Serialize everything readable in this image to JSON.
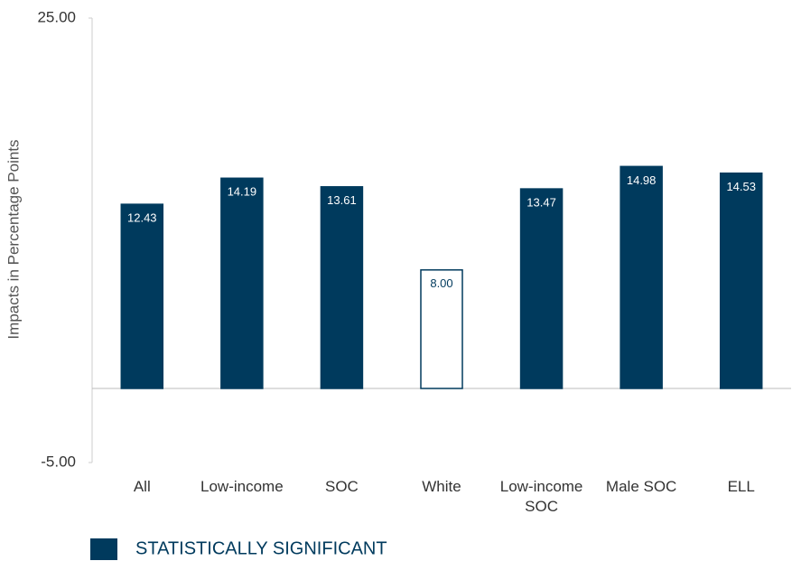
{
  "chart_data": {
    "type": "bar",
    "y_axis_label": "Impacts in Percentage Points",
    "categories": [
      "All",
      "Low-income",
      "SOC",
      "White",
      "Low-income SOC",
      "Male SOC",
      "ELL"
    ],
    "series": [
      {
        "name": "STATISTICALLY SIGNIFICANT",
        "color": "#003a5d",
        "values": [
          12.43,
          14.19,
          13.61,
          8,
          13.47,
          14.98,
          14.53
        ],
        "value_labels": [
          "12.43",
          "14.19",
          "13.61",
          "8.00",
          "13.47",
          "14.98",
          "14.53"
        ],
        "bar_colors": [
          "#003a5d",
          "#003a5d",
          "#003a5d",
          "#ffffff",
          "#003a5d",
          "#003a5d",
          "#003a5d"
        ]
      }
    ],
    "ylim": [
      -5,
      25
    ],
    "yticks": [
      {
        "value": -5,
        "label": "-5.00"
      },
      {
        "value": 25,
        "label": "25.00"
      }
    ],
    "grid": false,
    "legend": "bottom-left"
  }
}
